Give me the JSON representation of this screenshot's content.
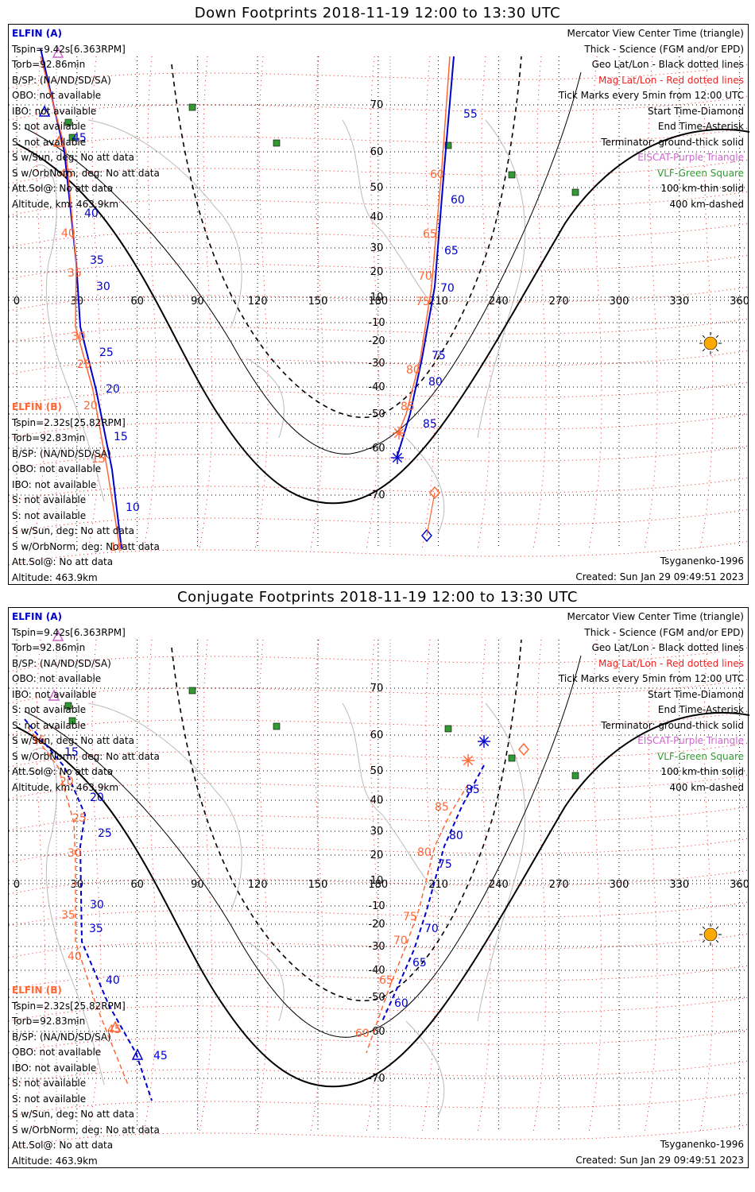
{
  "panels": [
    {
      "title": "Down Footprints 2018-11-19 12:00 to 13:30 UTC",
      "craft_a": {
        "name": "ELFIN (A)",
        "lines": [
          "Tspin=9.42s[6.363RPM]",
          "Torb=92.86min",
          "B/SP: (NA/ND/SD/SA)",
          "OBO: not available",
          "IBO: not available",
          "S: not available",
          "S: not available",
          "S w/Sun, deg: No att data",
          "S w/OrbNorm, deg: No att data",
          "Att.Sol@: No att data",
          "Altitude, km: 463.9km"
        ]
      },
      "craft_b": {
        "name": "ELFIN (B)",
        "lines": [
          "Tspin=2.32s[25.82RPM]",
          "Torb=92.83min",
          "B/SP: (NA/ND/SD/SA)",
          "OBO: not available",
          "IBO: not available",
          "S: not available",
          "S: not available",
          "S w/Sun, deg: No att data",
          "S w/OrbNorm, deg: No att data",
          "Att.Sol@: No att data",
          "Altitude: 463.9km"
        ]
      },
      "footer_left": "",
      "footer_right1": "Tsyganenko-1996",
      "footer_right2": "Created: Sun Jan 29 09:49:51 2023",
      "track_a_labels": [
        [
          "55",
          572,
          112
        ],
        [
          "60",
          556,
          220
        ],
        [
          "65",
          548,
          284
        ],
        [
          "70",
          543,
          331
        ],
        [
          "75",
          532,
          416
        ],
        [
          "80",
          528,
          449
        ],
        [
          "85",
          521,
          502
        ],
        [
          "45",
          80,
          142
        ],
        [
          "40",
          95,
          237
        ],
        [
          "35",
          102,
          296
        ],
        [
          "30",
          110,
          329
        ],
        [
          "25",
          114,
          412
        ],
        [
          "20",
          122,
          458
        ],
        [
          "15",
          132,
          518
        ],
        [
          "10",
          147,
          607
        ]
      ],
      "track_b_labels": [
        [
          "60",
          530,
          188
        ],
        [
          "65",
          521,
          263
        ],
        [
          "70",
          515,
          316
        ],
        [
          "75",
          512,
          348
        ],
        [
          "80",
          500,
          434
        ],
        [
          "85",
          493,
          480
        ],
        [
          "45",
          64,
          187
        ],
        [
          "40",
          66,
          262
        ],
        [
          "35",
          74,
          312
        ],
        [
          "30",
          79,
          392
        ],
        [
          "25",
          86,
          427
        ],
        [
          "20",
          94,
          479
        ],
        [
          "15",
          104,
          546
        ],
        [
          "10",
          127,
          657
        ]
      ]
    },
    {
      "title": "Conjugate Footprints 2018-11-19 12:00 to 13:30 UTC",
      "craft_a": {
        "name": "ELFIN (A)",
        "lines": [
          "Tspin=9.42s[6.363RPM]",
          "Torb=92.86min",
          "B/SP: (NA/ND/SD/SA)",
          "OBO: not available",
          "IBO: not available",
          "S: not available",
          "S: not available",
          "S w/Sun, deg: No att data",
          "S w/OrbNorm, deg: No att data",
          "Att.Sol@: No att data",
          "Altitude, km: 463.9km"
        ]
      },
      "craft_b": {
        "name": "ELFIN (B)",
        "lines": [
          "Tspin=2.32s[25.82RPM]",
          "Torb=92.83min",
          "B/SP: (NA/ND/SD/SA)",
          "OBO: not available",
          "IBO: not available",
          "S: not available",
          "S: not available",
          "S w/Sun, deg: No att data",
          "S w/OrbNorm, deg: No att data",
          "Att.Sol@: No att data",
          "Altitude: 463.9km"
        ]
      },
      "footer_left": "",
      "footer_right1": "Tsyganenko-1996",
      "footer_right2": "Created: Sun Jan 29 09:49:51 2023",
      "track_a_labels": [
        [
          "85",
          575,
          228
        ],
        [
          "80",
          554,
          286
        ],
        [
          "75",
          540,
          322
        ],
        [
          "70",
          523,
          403
        ],
        [
          "65",
          508,
          446
        ],
        [
          "60",
          485,
          497
        ],
        [
          "15",
          70,
          181
        ],
        [
          "20",
          102,
          238
        ],
        [
          "25",
          112,
          283
        ],
        [
          "30",
          102,
          373
        ],
        [
          "35",
          101,
          403
        ],
        [
          "40",
          122,
          468
        ],
        [
          "45",
          182,
          563
        ]
      ],
      "track_b_labels": [
        [
          "85",
          536,
          250
        ],
        [
          "80",
          514,
          307
        ],
        [
          "75",
          496,
          388
        ],
        [
          "70",
          484,
          418
        ],
        [
          "65",
          466,
          468
        ],
        [
          "60",
          436,
          535
        ],
        [
          "15",
          29,
          166
        ],
        [
          "20",
          64,
          218
        ],
        [
          "25",
          80,
          264
        ],
        [
          "30",
          74,
          308
        ],
        [
          "35",
          66,
          386
        ],
        [
          "40",
          74,
          438
        ],
        [
          "45",
          124,
          530
        ]
      ]
    }
  ],
  "legend": {
    "l1": "Mercator View Center Time (triangle)",
    "l2": "Thick - Science (FGM and/or EPD)",
    "l3": "Geo Lat/Lon - Black dotted lines",
    "l4": "Mag Lat/Lon - Red dotted lines",
    "l5": "Tick Marks every 5min from 12:00 UTC",
    "l6": "Start Time-Diamond",
    "l7": "End Time-Asterisk",
    "l8": "Terminator: ground-thick solid",
    "l9": "EISCAT-Purple Triangle",
    "l10": "VLF-Green Square",
    "l11": "100 km-thin solid",
    "l12": "400 km-dashed"
  },
  "lon_ticks": [
    "0",
    "30",
    "60",
    "90",
    "120",
    "150",
    "180",
    "210",
    "240",
    "270",
    "300",
    "330",
    "360"
  ],
  "lat_ticks": [
    "70",
    "60",
    "50",
    "40",
    "30",
    "20",
    "10",
    "-10",
    "-20",
    "-30",
    "-40",
    "-50",
    "-60",
    "-70"
  ],
  "colors": {
    "craft_a": "#0000cc",
    "craft_b": "#ff6633",
    "geo_grid": "#000000",
    "mag_grid": "#ee2222",
    "eiscat": "#cc66cc",
    "vlf": "#339933",
    "sun": "#ffaa00"
  }
}
